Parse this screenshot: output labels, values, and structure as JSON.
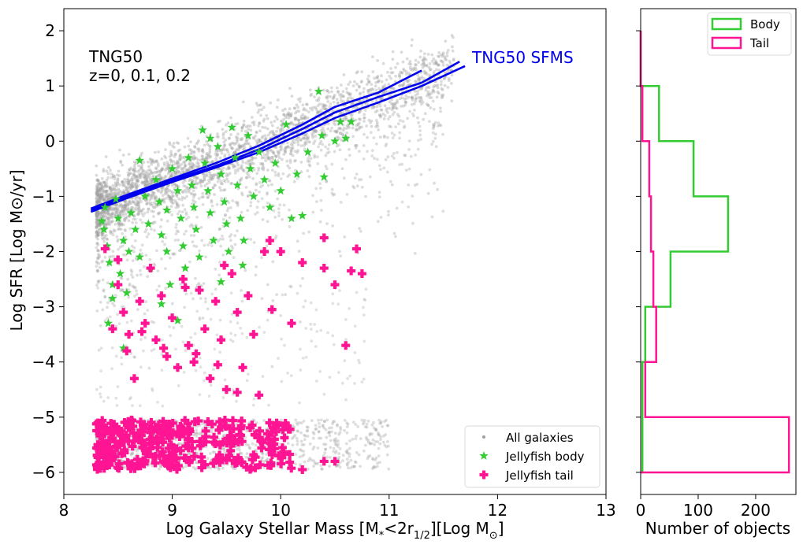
{
  "chart_data": [
    {
      "type": "scatter",
      "xlabel_main": "Log Galaxy Stellar Mass [M",
      "xlabel_sub1": "*",
      "xlabel_mid": "<2r",
      "xlabel_sub2": "1/2",
      "xlabel_tail": "][Log M",
      "xlabel_sun": "⊙",
      "xlabel_end": "]",
      "ylabel": "Log SFR [Log M⊙/yr]",
      "xlim": [
        8,
        13
      ],
      "ylim": [
        -6.4,
        2.4
      ],
      "xticks": [
        "8",
        "9",
        "10",
        "11",
        "12",
        "13"
      ],
      "yticks": [
        "−6",
        "−5",
        "−4",
        "−3",
        "−2",
        "−1",
        "0",
        "1",
        "2"
      ],
      "grid": false,
      "annotation_title": "TNG50",
      "annotation_z": "z=0, 0.1, 0.2",
      "sfms_label": "TNG50 SFMS",
      "sfms_color": "#0000ee",
      "legend_position": "lower-right",
      "legend": [
        {
          "label": "All galaxies",
          "color": "#a0a0a0"
        },
        {
          "label": "Jellyfish body",
          "color": "#33cc33"
        },
        {
          "label": "Jellyfish tail",
          "color": "#ff1493"
        }
      ],
      "sfms_lines": [
        {
          "x": [
            8.25,
            8.6,
            9.0,
            9.4,
            9.8,
            10.2,
            10.5,
            10.9,
            11.3
          ],
          "y": [
            -1.22,
            -0.96,
            -0.68,
            -0.4,
            -0.08,
            0.3,
            0.62,
            0.88,
            1.28
          ]
        },
        {
          "x": [
            8.25,
            8.6,
            9.0,
            9.4,
            9.8,
            10.2,
            10.5,
            10.9,
            11.3,
            11.65
          ],
          "y": [
            -1.25,
            -0.99,
            -0.71,
            -0.45,
            -0.15,
            0.22,
            0.52,
            0.8,
            1.06,
            1.44
          ]
        },
        {
          "x": [
            8.25,
            8.6,
            9.0,
            9.4,
            9.8,
            10.2,
            10.5,
            10.9,
            11.3,
            11.7
          ],
          "y": [
            -1.28,
            -1.02,
            -0.74,
            -0.48,
            -0.2,
            0.14,
            0.42,
            0.7,
            1.0,
            1.36
          ]
        }
      ],
      "jellyfish_body": [
        [
          8.37,
          -1.6
        ],
        [
          8.4,
          -1.9
        ],
        [
          8.42,
          -2.2
        ],
        [
          8.45,
          -2.6
        ],
        [
          8.38,
          -1.2
        ],
        [
          8.5,
          -1.4
        ],
        [
          8.55,
          -1.8
        ],
        [
          8.6,
          -2.0
        ],
        [
          8.52,
          -2.4
        ],
        [
          8.45,
          -2.85
        ],
        [
          8.41,
          -3.3
        ],
        [
          8.55,
          -3.75
        ],
        [
          8.62,
          -1.3
        ],
        [
          8.66,
          -1.6
        ],
        [
          8.7,
          -2.1
        ],
        [
          8.75,
          -1.0
        ],
        [
          8.78,
          -1.5
        ],
        [
          8.8,
          -2.3
        ],
        [
          8.85,
          -0.7
        ],
        [
          8.88,
          -1.1
        ],
        [
          8.9,
          -1.7
        ],
        [
          8.95,
          -2.0
        ],
        [
          8.98,
          -2.6
        ],
        [
          9.0,
          -0.5
        ],
        [
          9.05,
          -0.9
        ],
        [
          9.08,
          -1.4
        ],
        [
          9.1,
          -1.9
        ],
        [
          9.12,
          -2.3
        ],
        [
          9.15,
          -0.3
        ],
        [
          9.18,
          -0.8
        ],
        [
          9.2,
          -1.2
        ],
        [
          9.22,
          -1.6
        ],
        [
          9.25,
          -2.1
        ],
        [
          9.28,
          0.2
        ],
        [
          9.3,
          -0.4
        ],
        [
          9.33,
          -0.9
        ],
        [
          9.35,
          -1.3
        ],
        [
          9.38,
          -1.8
        ],
        [
          9.42,
          -0.1
        ],
        [
          9.45,
          -0.6
        ],
        [
          9.48,
          -1.1
        ],
        [
          9.5,
          -1.5
        ],
        [
          9.52,
          -2.0
        ],
        [
          9.55,
          0.25
        ],
        [
          9.58,
          -0.3
        ],
        [
          9.6,
          -0.8
        ],
        [
          9.63,
          -1.4
        ],
        [
          9.66,
          -1.8
        ],
        [
          9.7,
          0.1
        ],
        [
          9.72,
          -0.5
        ],
        [
          9.75,
          -1.0
        ],
        [
          9.8,
          -0.2
        ],
        [
          9.85,
          -0.7
        ],
        [
          9.9,
          -1.2
        ],
        [
          9.95,
          -0.4
        ],
        [
          10.0,
          -0.9
        ],
        [
          10.05,
          0.3
        ],
        [
          10.1,
          -1.4
        ],
        [
          10.15,
          -0.6
        ],
        [
          10.25,
          -0.2
        ],
        [
          10.35,
          0.9
        ],
        [
          10.38,
          0.1
        ],
        [
          10.4,
          -0.65
        ],
        [
          10.5,
          0.0
        ],
        [
          10.55,
          0.35
        ],
        [
          10.6,
          0.05
        ],
        [
          10.65,
          0.35
        ],
        [
          8.35,
          -1.45
        ],
        [
          8.48,
          -1.05
        ],
        [
          8.58,
          -2.75
        ],
        [
          9.05,
          -3.25
        ],
        [
          9.45,
          -2.55
        ],
        [
          8.9,
          -2.95
        ],
        [
          8.7,
          -0.35
        ],
        [
          9.35,
          0.05
        ],
        [
          9.65,
          -2.25
        ],
        [
          8.95,
          -1.25
        ],
        [
          10.2,
          -1.35
        ]
      ],
      "jellyfish_tail": [
        [
          8.5,
          -2.6
        ],
        [
          8.55,
          -3.1
        ],
        [
          8.6,
          -3.5
        ],
        [
          8.65,
          -4.3
        ],
        [
          8.7,
          -2.9
        ],
        [
          8.75,
          -3.3
        ],
        [
          8.8,
          -2.3
        ],
        [
          8.85,
          -3.6
        ],
        [
          8.9,
          -2.8
        ],
        [
          8.95,
          -3.9
        ],
        [
          9.0,
          -3.2
        ],
        [
          9.05,
          -4.1
        ],
        [
          9.1,
          -2.5
        ],
        [
          9.15,
          -3.7
        ],
        [
          9.2,
          -4.0
        ],
        [
          9.25,
          -2.7
        ],
        [
          9.3,
          -3.4
        ],
        [
          9.35,
          -4.3
        ],
        [
          9.4,
          -2.9
        ],
        [
          9.45,
          -3.6
        ],
        [
          9.5,
          -4.5
        ],
        [
          9.55,
          -2.4
        ],
        [
          9.6,
          -3.1
        ],
        [
          9.65,
          -4.1
        ],
        [
          9.7,
          -2.8
        ],
        [
          9.75,
          -3.5
        ],
        [
          9.8,
          -4.6
        ],
        [
          9.85,
          -2.0
        ],
        [
          9.9,
          -1.8
        ],
        [
          10.0,
          -2.0
        ],
        [
          10.1,
          -3.3
        ],
        [
          10.2,
          -2.2
        ],
        [
          10.4,
          -1.75
        ],
        [
          10.4,
          -2.3
        ],
        [
          10.5,
          -2.6
        ],
        [
          10.6,
          -3.7
        ],
        [
          10.65,
          -2.35
        ],
        [
          10.7,
          -1.95
        ],
        [
          10.75,
          -2.4
        ],
        [
          8.45,
          -3.4
        ],
        [
          8.58,
          -3.8
        ],
        [
          8.72,
          -3.45
        ],
        [
          8.92,
          -3.75
        ],
        [
          9.22,
          -3.85
        ],
        [
          9.42,
          -4.05
        ],
        [
          9.6,
          -4.55
        ],
        [
          9.12,
          -2.65
        ],
        [
          9.48,
          -2.25
        ],
        [
          9.92,
          -3.05
        ],
        [
          8.38,
          -1.95
        ],
        [
          8.5,
          -2.15
        ]
      ]
    },
    {
      "type": "histogram",
      "xlabel": "Number of objects",
      "xlim": [
        0,
        270
      ],
      "xticks": [
        "0",
        "100",
        "200"
      ],
      "legend_position": "top-right",
      "bin_edges": [
        -6,
        -5,
        -4,
        -3,
        -2,
        -1,
        0,
        1,
        2
      ],
      "series": [
        {
          "name": "Body",
          "color": "#33cc33",
          "counts": [
            3,
            3,
            8,
            52,
            152,
            92,
            32,
            0
          ]
        },
        {
          "name": "Tail",
          "color": "#ff1493",
          "counts": [
            258,
            8,
            27,
            22,
            18,
            15,
            3,
            0
          ]
        }
      ]
    }
  ]
}
